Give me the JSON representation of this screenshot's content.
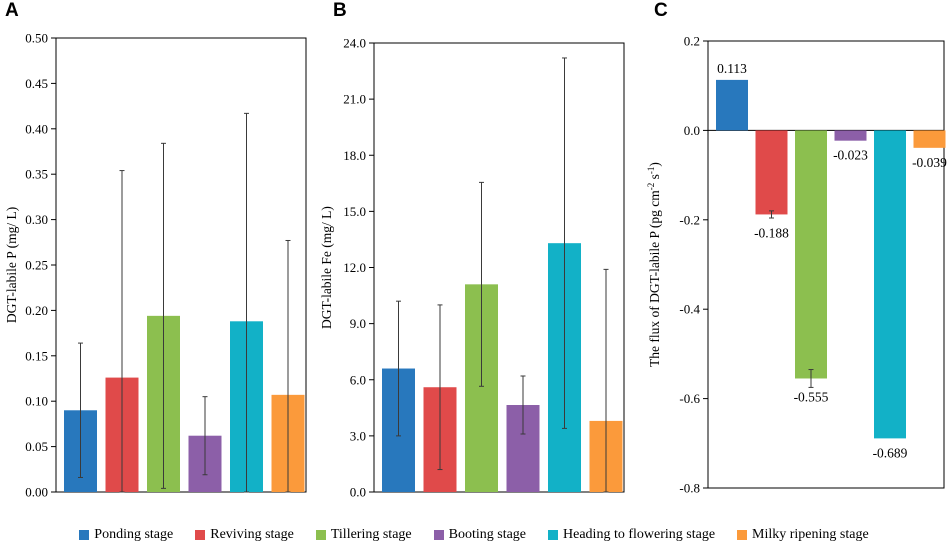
{
  "panel_letters": [
    "A",
    "B",
    "C"
  ],
  "legend": [
    {
      "label": "Ponding stage",
      "color": "#2878bd"
    },
    {
      "label": "Reviving stage",
      "color": "#e04a4a"
    },
    {
      "label": "Tillering stage",
      "color": "#8cbf4f"
    },
    {
      "label": "Booting stage",
      "color": "#8c5fa8"
    },
    {
      "label": "Heading to flowering stage",
      "color": "#12b1c7"
    },
    {
      "label": "Milky ripening stage",
      "color": "#fb9a3b"
    }
  ],
  "chart_data": [
    {
      "type": "bar",
      "panel": "A",
      "title": "",
      "xlabel": "",
      "ylabel": "DGT-labile P (mg/ L)",
      "ylim": [
        0,
        0.5
      ],
      "yticks": [
        "0.00",
        "0.05",
        "0.10",
        "0.15",
        "0.20",
        "0.25",
        "0.30",
        "0.35",
        "0.40",
        "0.45",
        "0.50"
      ],
      "categories": [
        "Ponding stage",
        "Reviving stage",
        "Tillering stage",
        "Booting stage",
        "Heading to flowering stage",
        "Milky ripening stage"
      ],
      "values": [
        0.09,
        0.126,
        0.194,
        0.062,
        0.188,
        0.107
      ],
      "errors": [
        0.074,
        0.228,
        0.19,
        0.043,
        0.229,
        0.17
      ]
    },
    {
      "type": "bar",
      "panel": "B",
      "title": "",
      "xlabel": "",
      "ylabel": "DGT-labile Fe (mg/ L)",
      "ylim": [
        0,
        24
      ],
      "yticks": [
        "0.0",
        "3.0",
        "6.0",
        "9.0",
        "12.0",
        "15.0",
        "18.0",
        "21.0",
        "24.0"
      ],
      "categories": [
        "Ponding stage",
        "Reviving stage",
        "Tillering stage",
        "Booting stage",
        "Heading to flowering stage",
        "Milky ripening stage"
      ],
      "values": [
        6.6,
        5.6,
        11.1,
        4.65,
        13.3,
        3.8
      ],
      "errors": [
        3.6,
        4.4,
        5.45,
        1.55,
        9.9,
        8.1
      ]
    },
    {
      "type": "bar",
      "panel": "C",
      "title": "",
      "xlabel": "",
      "ylabel": "The flux of DGT-labile P (pg cm⁻² s⁻¹)",
      "ylim": [
        -0.8,
        0.2
      ],
      "yticks": [
        "-0.8",
        "-0.6",
        "-0.4",
        "-0.2",
        "0.0",
        "0.2"
      ],
      "categories": [
        "Ponding stage",
        "Reviving stage",
        "Tillering stage",
        "Booting stage",
        "Heading to flowering stage",
        "Milky ripening stage"
      ],
      "values": [
        0.113,
        -0.188,
        -0.555,
        -0.023,
        -0.689,
        -0.039
      ],
      "value_labels": [
        "0.113",
        "-0.188",
        "-0.555",
        "-0.023",
        "-0.689",
        "-0.039"
      ],
      "errors": [
        0,
        0.008,
        0.02,
        0,
        0,
        0
      ]
    }
  ]
}
